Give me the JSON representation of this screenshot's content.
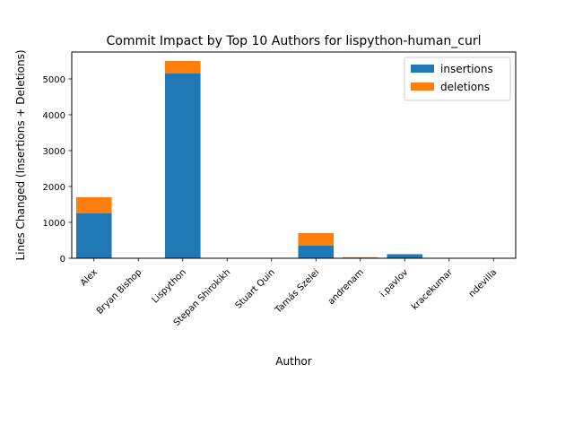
{
  "chart_data": {
    "type": "bar",
    "stacked": true,
    "title": "Commit Impact by Top 10 Authors for lispython-human_curl",
    "xlabel": "Author",
    "ylabel": "Lines Changed (Insertions + Deletions)",
    "categories": [
      "Alex",
      "Bryan Bishop",
      "Lispython",
      "Stepan Shirokikh",
      "Stuart Quin",
      "Tamás Szelei",
      "andrenam",
      "i.pavlov",
      "kracekumar",
      "ndevilla"
    ],
    "series": [
      {
        "name": "insertions",
        "color": "#1f77b4",
        "values": [
          1250,
          0,
          5150,
          0,
          0,
          350,
          20,
          100,
          0,
          0
        ]
      },
      {
        "name": "deletions",
        "color": "#ff7f0e",
        "values": [
          450,
          0,
          350,
          0,
          0,
          350,
          10,
          20,
          0,
          0
        ]
      }
    ],
    "ylim": [
      0,
      5750
    ],
    "yticks": [
      0,
      1000,
      2000,
      3000,
      4000,
      5000
    ],
    "grid": false,
    "legend_position": "upper right"
  }
}
